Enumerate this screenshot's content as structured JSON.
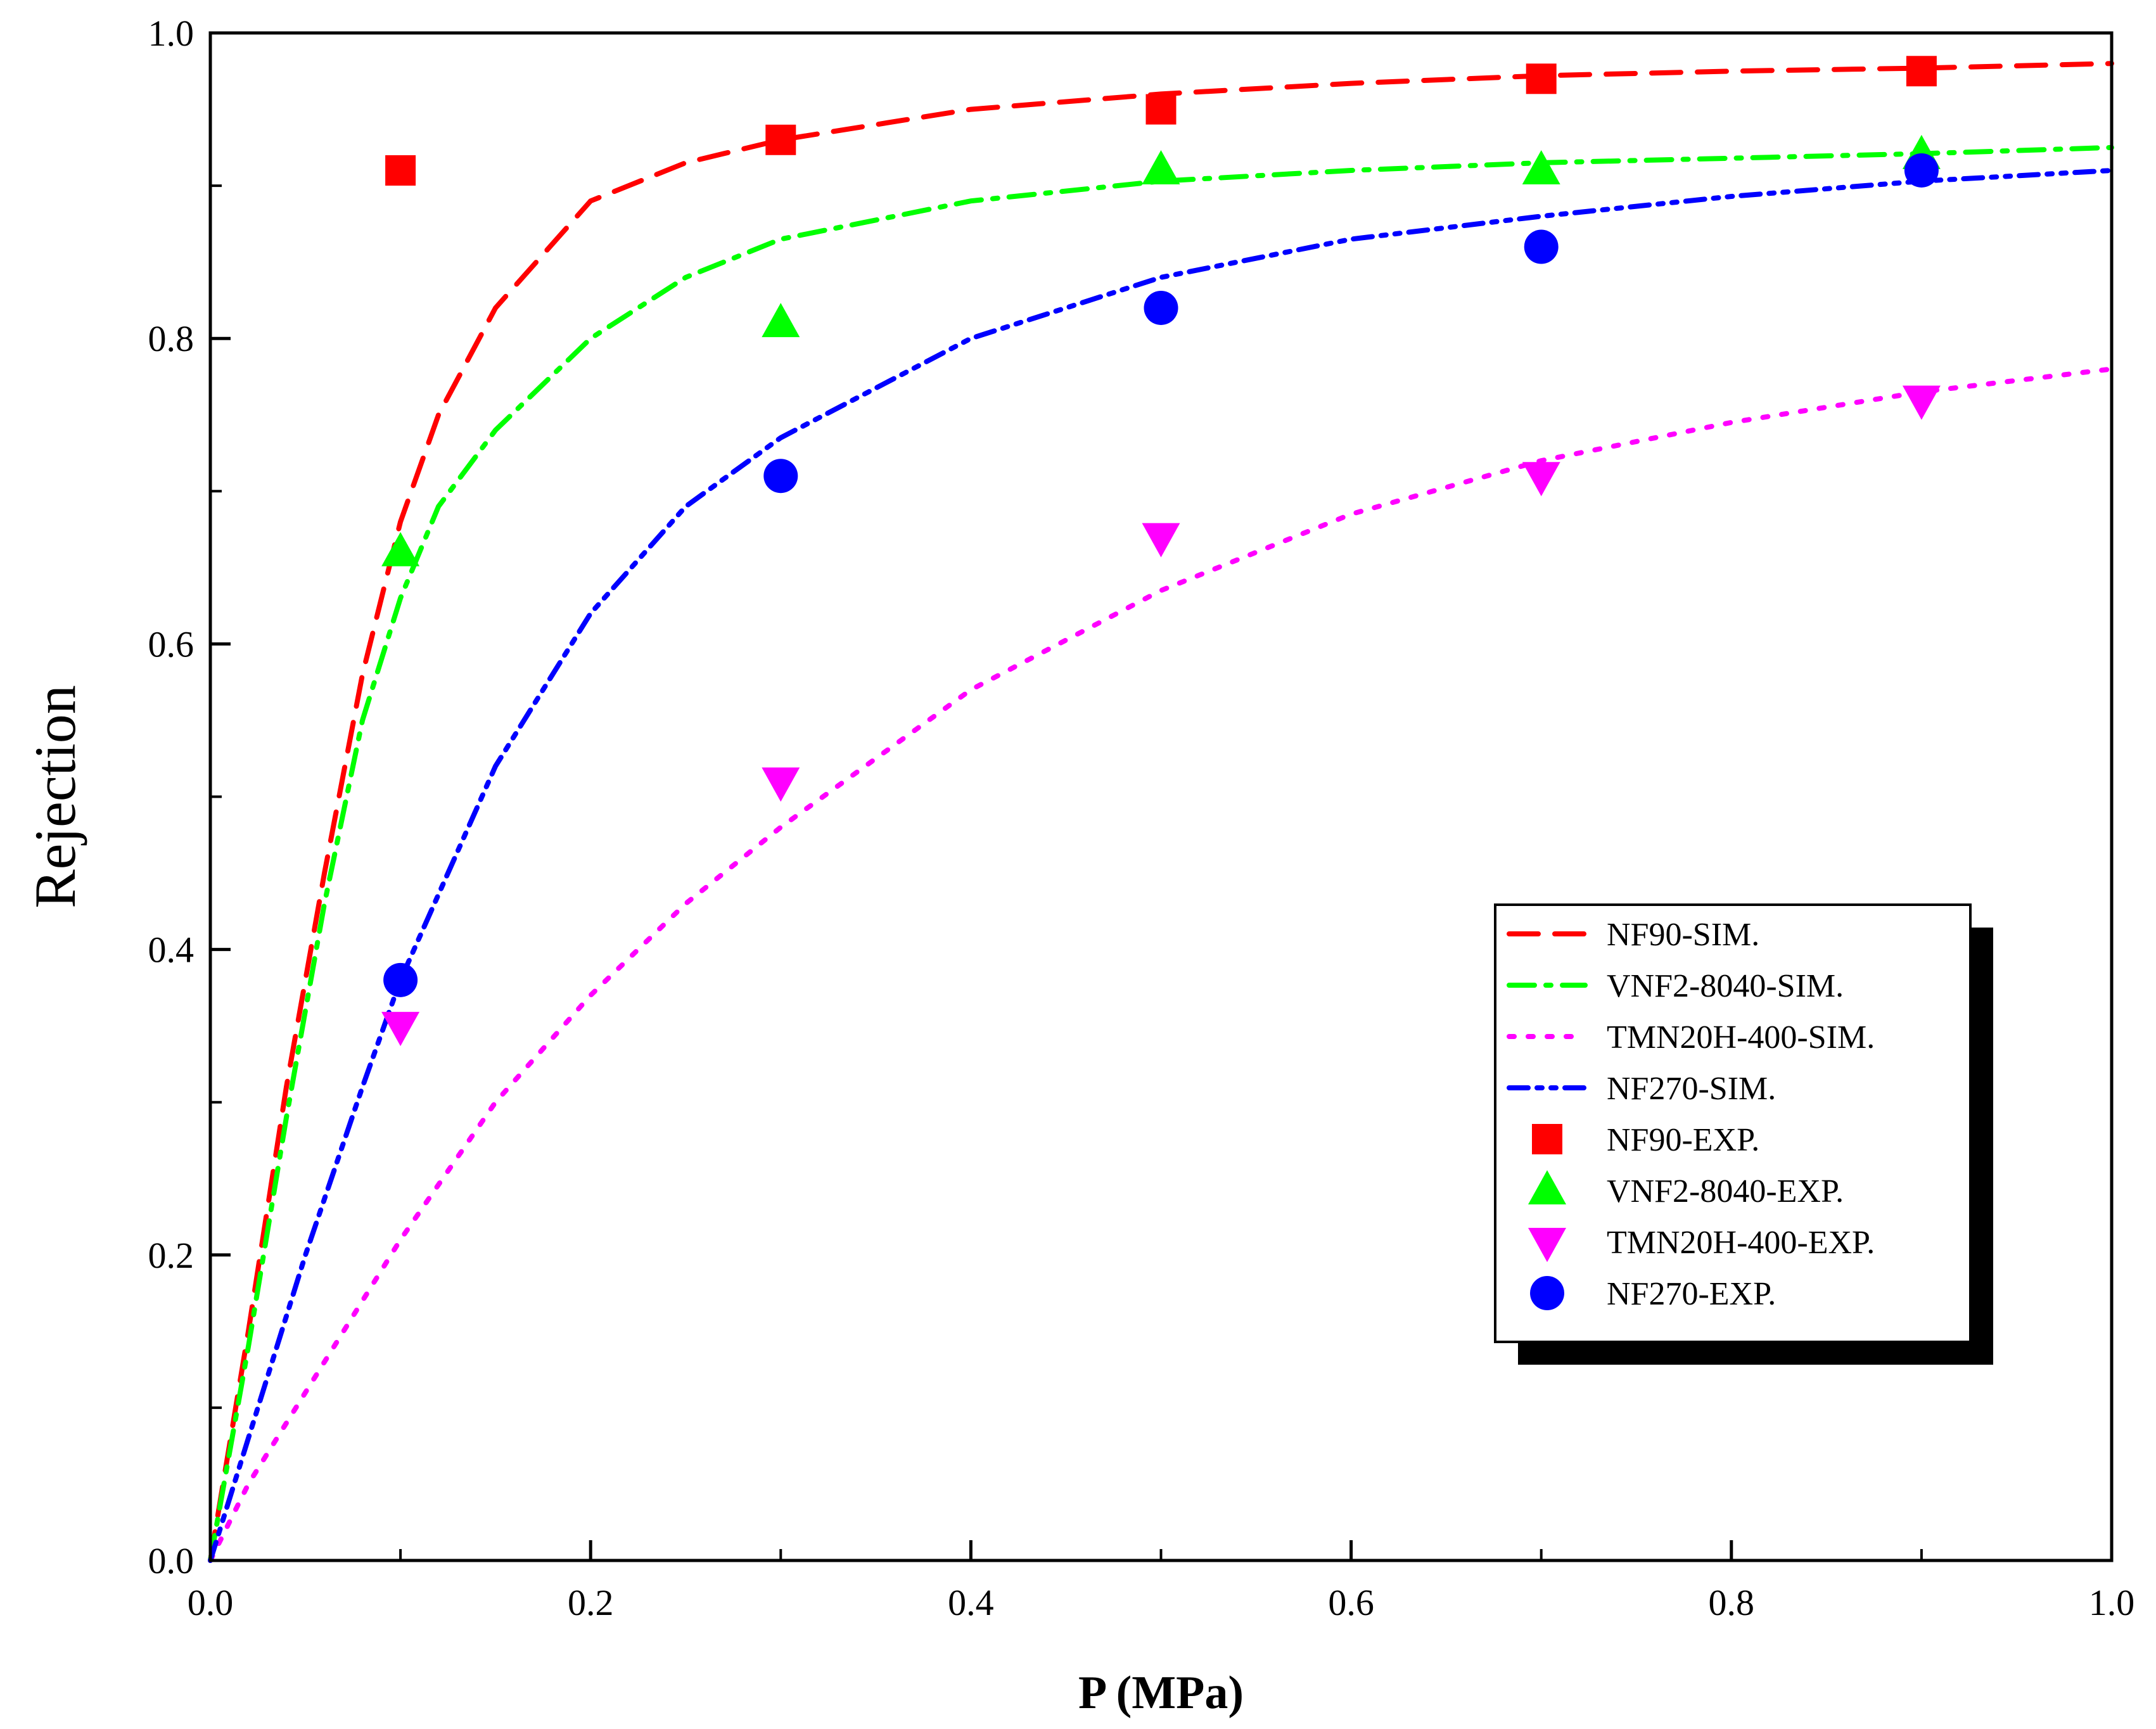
{
  "chart_data": {
    "type": "scatter",
    "title": "",
    "xlabel": "P (MPa)",
    "ylabel": "Rejection",
    "xlim": [
      0.0,
      1.0
    ],
    "ylim": [
      0.0,
      1.0
    ],
    "x_ticks": [
      0.0,
      0.2,
      0.4,
      0.6,
      0.8,
      1.0
    ],
    "x_tick_labels": [
      "0.0",
      "0.2",
      "0.4",
      "0.6",
      "0.8",
      "1.0"
    ],
    "y_ticks": [
      0.0,
      0.2,
      0.4,
      0.6,
      0.8,
      1.0
    ],
    "y_tick_labels": [
      "0.0",
      "0.2",
      "0.4",
      "0.6",
      "0.8",
      "1.0"
    ],
    "grid": false,
    "legend_position": "center-right",
    "lines": [
      {
        "name": "NF90-SIM.",
        "color": "#ff0000",
        "style": "dash",
        "x": [
          0.0,
          0.02,
          0.04,
          0.06,
          0.08,
          0.1,
          0.12,
          0.15,
          0.2,
          0.25,
          0.3,
          0.4,
          0.5,
          0.6,
          0.7,
          0.8,
          0.9,
          1.0
        ],
        "y": [
          0.0,
          0.15,
          0.31,
          0.45,
          0.58,
          0.68,
          0.75,
          0.82,
          0.89,
          0.915,
          0.93,
          0.95,
          0.96,
          0.967,
          0.972,
          0.975,
          0.977,
          0.98
        ]
      },
      {
        "name": "VNF2-8040-SIM.",
        "color": "#00ff00",
        "style": "dashdot",
        "x": [
          0.0,
          0.02,
          0.04,
          0.06,
          0.08,
          0.1,
          0.12,
          0.15,
          0.2,
          0.25,
          0.3,
          0.4,
          0.5,
          0.6,
          0.7,
          0.8,
          0.9,
          1.0
        ],
        "y": [
          0.0,
          0.14,
          0.29,
          0.43,
          0.55,
          0.63,
          0.69,
          0.74,
          0.8,
          0.84,
          0.865,
          0.89,
          0.903,
          0.91,
          0.915,
          0.918,
          0.921,
          0.925
        ]
      },
      {
        "name": "TMN20H-400-SIM.",
        "color": "#ff00ff",
        "style": "dot",
        "x": [
          0.0,
          0.02,
          0.05,
          0.1,
          0.15,
          0.2,
          0.25,
          0.3,
          0.4,
          0.5,
          0.6,
          0.7,
          0.8,
          0.9,
          1.0
        ],
        "y": [
          0.0,
          0.05,
          0.11,
          0.21,
          0.3,
          0.37,
          0.43,
          0.48,
          0.57,
          0.635,
          0.685,
          0.72,
          0.745,
          0.765,
          0.78
        ]
      },
      {
        "name": "NF270-SIM.",
        "color": "#0000ff",
        "style": "dashdotdot",
        "x": [
          0.0,
          0.02,
          0.05,
          0.08,
          0.1,
          0.15,
          0.2,
          0.25,
          0.3,
          0.4,
          0.5,
          0.6,
          0.7,
          0.8,
          0.9,
          1.0
        ],
        "y": [
          0.0,
          0.08,
          0.2,
          0.31,
          0.38,
          0.52,
          0.62,
          0.69,
          0.735,
          0.8,
          0.84,
          0.865,
          0.88,
          0.893,
          0.903,
          0.91
        ]
      }
    ],
    "series": [
      {
        "name": "NF90-EXP.",
        "color": "#ff0000",
        "marker": "square",
        "x": [
          0.1,
          0.3,
          0.5,
          0.7,
          0.9
        ],
        "y": [
          0.91,
          0.93,
          0.95,
          0.97,
          0.975
        ]
      },
      {
        "name": "VNF2-8040-EXP.",
        "color": "#00ff00",
        "marker": "triangle-up",
        "x": [
          0.1,
          0.3,
          0.5,
          0.7,
          0.9
        ],
        "y": [
          0.66,
          0.81,
          0.91,
          0.91,
          0.92
        ]
      },
      {
        "name": "TMN20H-400-EXP.",
        "color": "#ff00ff",
        "marker": "triangle-down",
        "x": [
          0.1,
          0.3,
          0.5,
          0.7,
          0.9
        ],
        "y": [
          0.35,
          0.51,
          0.67,
          0.71,
          0.76
        ]
      },
      {
        "name": "NF270-EXP.",
        "color": "#0000ff",
        "marker": "circle",
        "x": [
          0.1,
          0.3,
          0.5,
          0.7,
          0.9
        ],
        "y": [
          0.38,
          0.71,
          0.82,
          0.86,
          0.91
        ]
      }
    ]
  }
}
